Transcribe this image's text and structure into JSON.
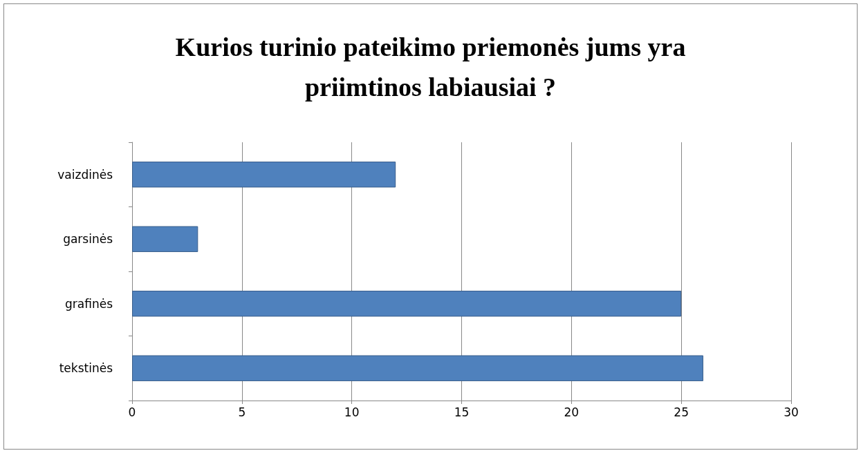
{
  "chart_data": {
    "type": "bar",
    "orientation": "horizontal",
    "title": "Kurios turinio pateikimo priemonės jums yra\npriimtinos labiausiai ?",
    "categories": [
      "vaizdinės",
      "garsinės",
      "grafinės",
      "tekstinės"
    ],
    "values": [
      12,
      3,
      25,
      26
    ],
    "color": "#4f81bd",
    "xlim": [
      0,
      30
    ],
    "xticks": [
      0,
      5,
      10,
      15,
      20,
      25,
      30
    ],
    "grid": "x"
  }
}
